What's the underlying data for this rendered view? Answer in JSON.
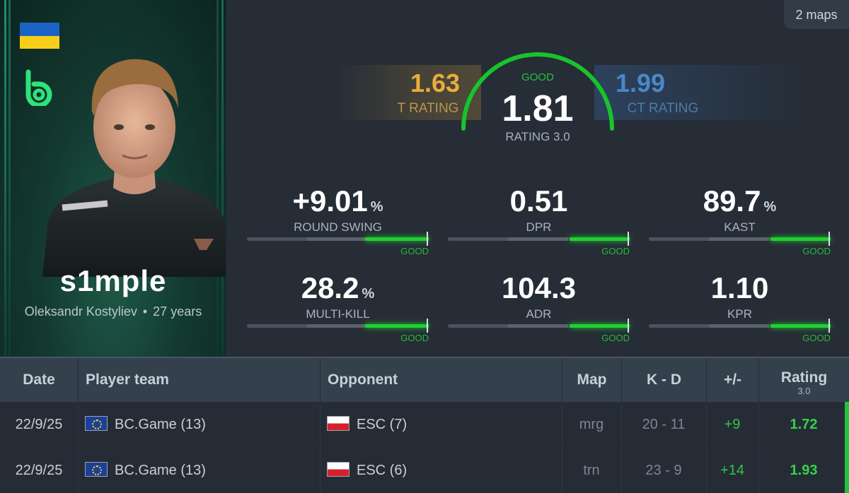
{
  "maps_badge": "2 maps",
  "player": {
    "nickname": "s1mple",
    "full_name": "Oleksandr Kostyliev",
    "separator": "•",
    "age": "27 years",
    "country_flag": "ukraine-flag",
    "team_logo": "bc-game-logo"
  },
  "rating": {
    "t_value": "1.63",
    "t_label": "T RATING",
    "ct_value": "1.99",
    "ct_label": "CT RATING",
    "main_value": "1.81",
    "main_label": "RATING 3.0",
    "grade": "GOOD",
    "gauge_fill_fraction": 0.9,
    "colors": {
      "t": "#e8ad3c",
      "ct": "#4a87c8",
      "good": "#1fd12f"
    }
  },
  "stats": [
    {
      "value": "+9.01",
      "unit": "%",
      "label": "ROUND SWING",
      "grade": "GOOD",
      "fill_fraction": 0.35
    },
    {
      "value": "0.51",
      "unit": "",
      "label": "DPR",
      "grade": "GOOD",
      "fill_fraction": 0.33
    },
    {
      "value": "89.7",
      "unit": "%",
      "label": "KAST",
      "grade": "GOOD",
      "fill_fraction": 0.33
    },
    {
      "value": "28.2",
      "unit": "%",
      "label": "MULTI-KILL",
      "grade": "GOOD",
      "fill_fraction": 0.35
    },
    {
      "value": "104.3",
      "unit": "",
      "label": "ADR",
      "grade": "GOOD",
      "fill_fraction": 0.33
    },
    {
      "value": "1.10",
      "unit": "",
      "label": "KPR",
      "grade": "GOOD",
      "fill_fraction": 0.33
    }
  ],
  "table": {
    "headers": {
      "date": "Date",
      "player_team": "Player team",
      "opponent": "Opponent",
      "map": "Map",
      "kd": "K - D",
      "plus_minus": "+/-",
      "rating": "Rating",
      "rating_sub": "3.0"
    },
    "rows": [
      {
        "date": "22/9/25",
        "team": "BC.Game (13)",
        "team_flag": "eu-flag",
        "opponent": "ESC (7)",
        "opponent_flag": "poland-flag",
        "map": "mrg",
        "kd": "20 - 11",
        "plus_minus": "+9",
        "rating": "1.72"
      },
      {
        "date": "22/9/25",
        "team": "BC.Game (13)",
        "team_flag": "eu-flag",
        "opponent": "ESC (6)",
        "opponent_flag": "poland-flag",
        "map": "trn",
        "kd": "23 - 9",
        "plus_minus": "+14",
        "rating": "1.93"
      }
    ]
  }
}
